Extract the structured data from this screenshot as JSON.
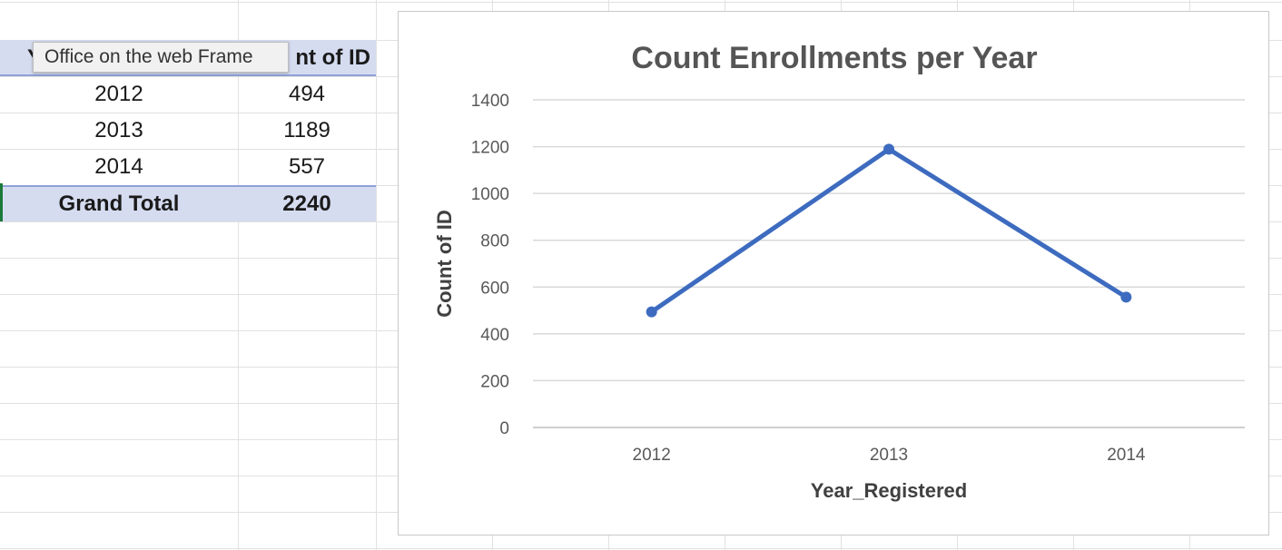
{
  "tooltip": {
    "text": "Office on the web Frame"
  },
  "pivot": {
    "header": {
      "col1": "Y",
      "col2": "nt of ID"
    },
    "rows": [
      {
        "year": "2012",
        "count": "494"
      },
      {
        "year": "2013",
        "count": "1189"
      },
      {
        "year": "2014",
        "count": "557"
      }
    ],
    "total": {
      "label": "Grand Total",
      "value": "2240"
    }
  },
  "colors": {
    "series": "#3d6bbf",
    "header_fill": "#d5dcf0",
    "header_border": "#8ea1d8"
  },
  "chart_data": {
    "type": "line",
    "title": "Count Enrollments per Year",
    "xlabel": "Year_Registered",
    "ylabel": "Count of ID",
    "categories": [
      "2012",
      "2013",
      "2014"
    ],
    "values": [
      494,
      1189,
      557
    ],
    "ylim": [
      0,
      1400
    ],
    "yticks": [
      0,
      200,
      400,
      600,
      800,
      1000,
      1200,
      1400
    ],
    "grid": true,
    "legend": "none"
  }
}
